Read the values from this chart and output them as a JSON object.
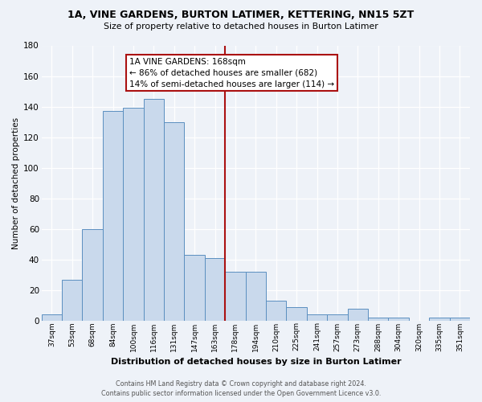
{
  "title": "1A, VINE GARDENS, BURTON LATIMER, KETTERING, NN15 5ZT",
  "subtitle": "Size of property relative to detached houses in Burton Latimer",
  "xlabel": "Distribution of detached houses by size in Burton Latimer",
  "ylabel": "Number of detached properties",
  "categories": [
    "37sqm",
    "53sqm",
    "68sqm",
    "84sqm",
    "100sqm",
    "116sqm",
    "131sqm",
    "147sqm",
    "163sqm",
    "178sqm",
    "194sqm",
    "210sqm",
    "225sqm",
    "241sqm",
    "257sqm",
    "273sqm",
    "288sqm",
    "304sqm",
    "320sqm",
    "335sqm",
    "351sqm"
  ],
  "values": [
    4,
    27,
    60,
    137,
    139,
    145,
    130,
    43,
    41,
    32,
    32,
    13,
    9,
    4,
    4,
    8,
    2,
    2,
    0,
    2,
    2
  ],
  "bar_color": "#c9d9ec",
  "bar_edge_color": "#5b8fc0",
  "vline_x_idx": 8.5,
  "vline_color": "#aa1111",
  "annotation_title": "1A VINE GARDENS: 168sqm",
  "annotation_line1": "← 86% of detached houses are smaller (682)",
  "annotation_line2": "14% of semi-detached houses are larger (114) →",
  "annotation_box_color": "#ffffff",
  "annotation_box_edge": "#aa1111",
  "ylim": [
    0,
    180
  ],
  "yticks": [
    0,
    20,
    40,
    60,
    80,
    100,
    120,
    140,
    160,
    180
  ],
  "footer_line1": "Contains HM Land Registry data © Crown copyright and database right 2024.",
  "footer_line2": "Contains public sector information licensed under the Open Government Licence v3.0.",
  "bg_color": "#eef2f8"
}
